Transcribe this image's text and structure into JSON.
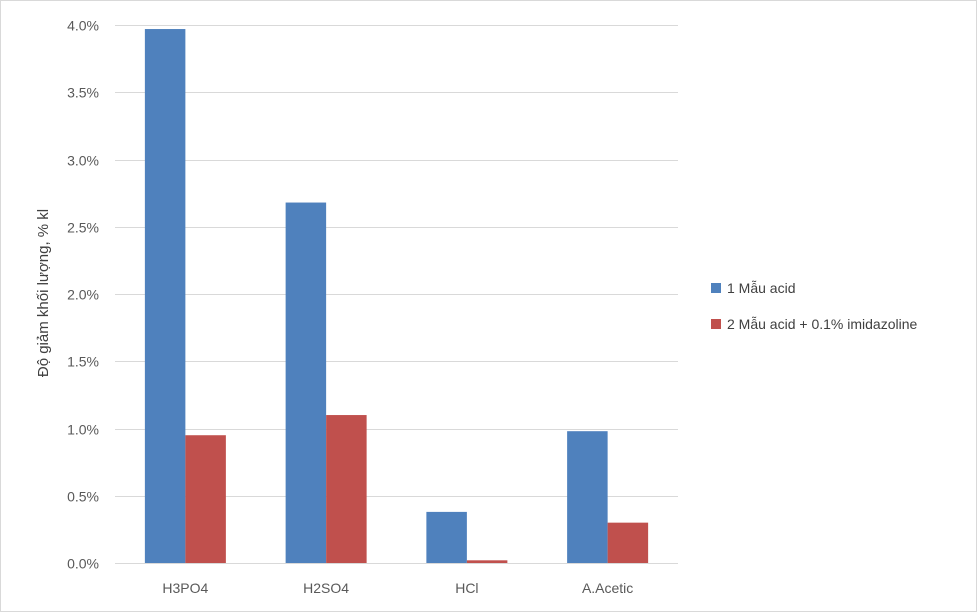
{
  "chart_data": {
    "type": "bar",
    "categories": [
      "H3PO4",
      "H2SO4",
      "HCl",
      "A.Acetic"
    ],
    "series": [
      {
        "name": "1 Mẫu acid",
        "color": "#4F81BD",
        "values": [
          0.0397,
          0.0268,
          0.0038,
          0.0098
        ]
      },
      {
        "name": "2 Mẫu acid + 0.1% imidazoline",
        "color": "#C0504D",
        "values": [
          0.0095,
          0.011,
          0.0002,
          0.003
        ]
      }
    ],
    "title": "",
    "xlabel": "",
    "ylabel": "Độ giảm khối lượng, % kl",
    "ylim": [
      0,
      0.04
    ],
    "yticks": [
      0,
      0.005,
      0.01,
      0.015,
      0.02,
      0.025,
      0.03,
      0.035,
      0.04
    ],
    "ytick_labels": [
      "0.0%",
      "0.5%",
      "1.0%",
      "1.5%",
      "2.0%",
      "2.5%",
      "3.0%",
      "3.5%",
      "4.0%"
    ],
    "grid": true,
    "legend_position": "right",
    "gridline_color": "#d9d9d9"
  }
}
